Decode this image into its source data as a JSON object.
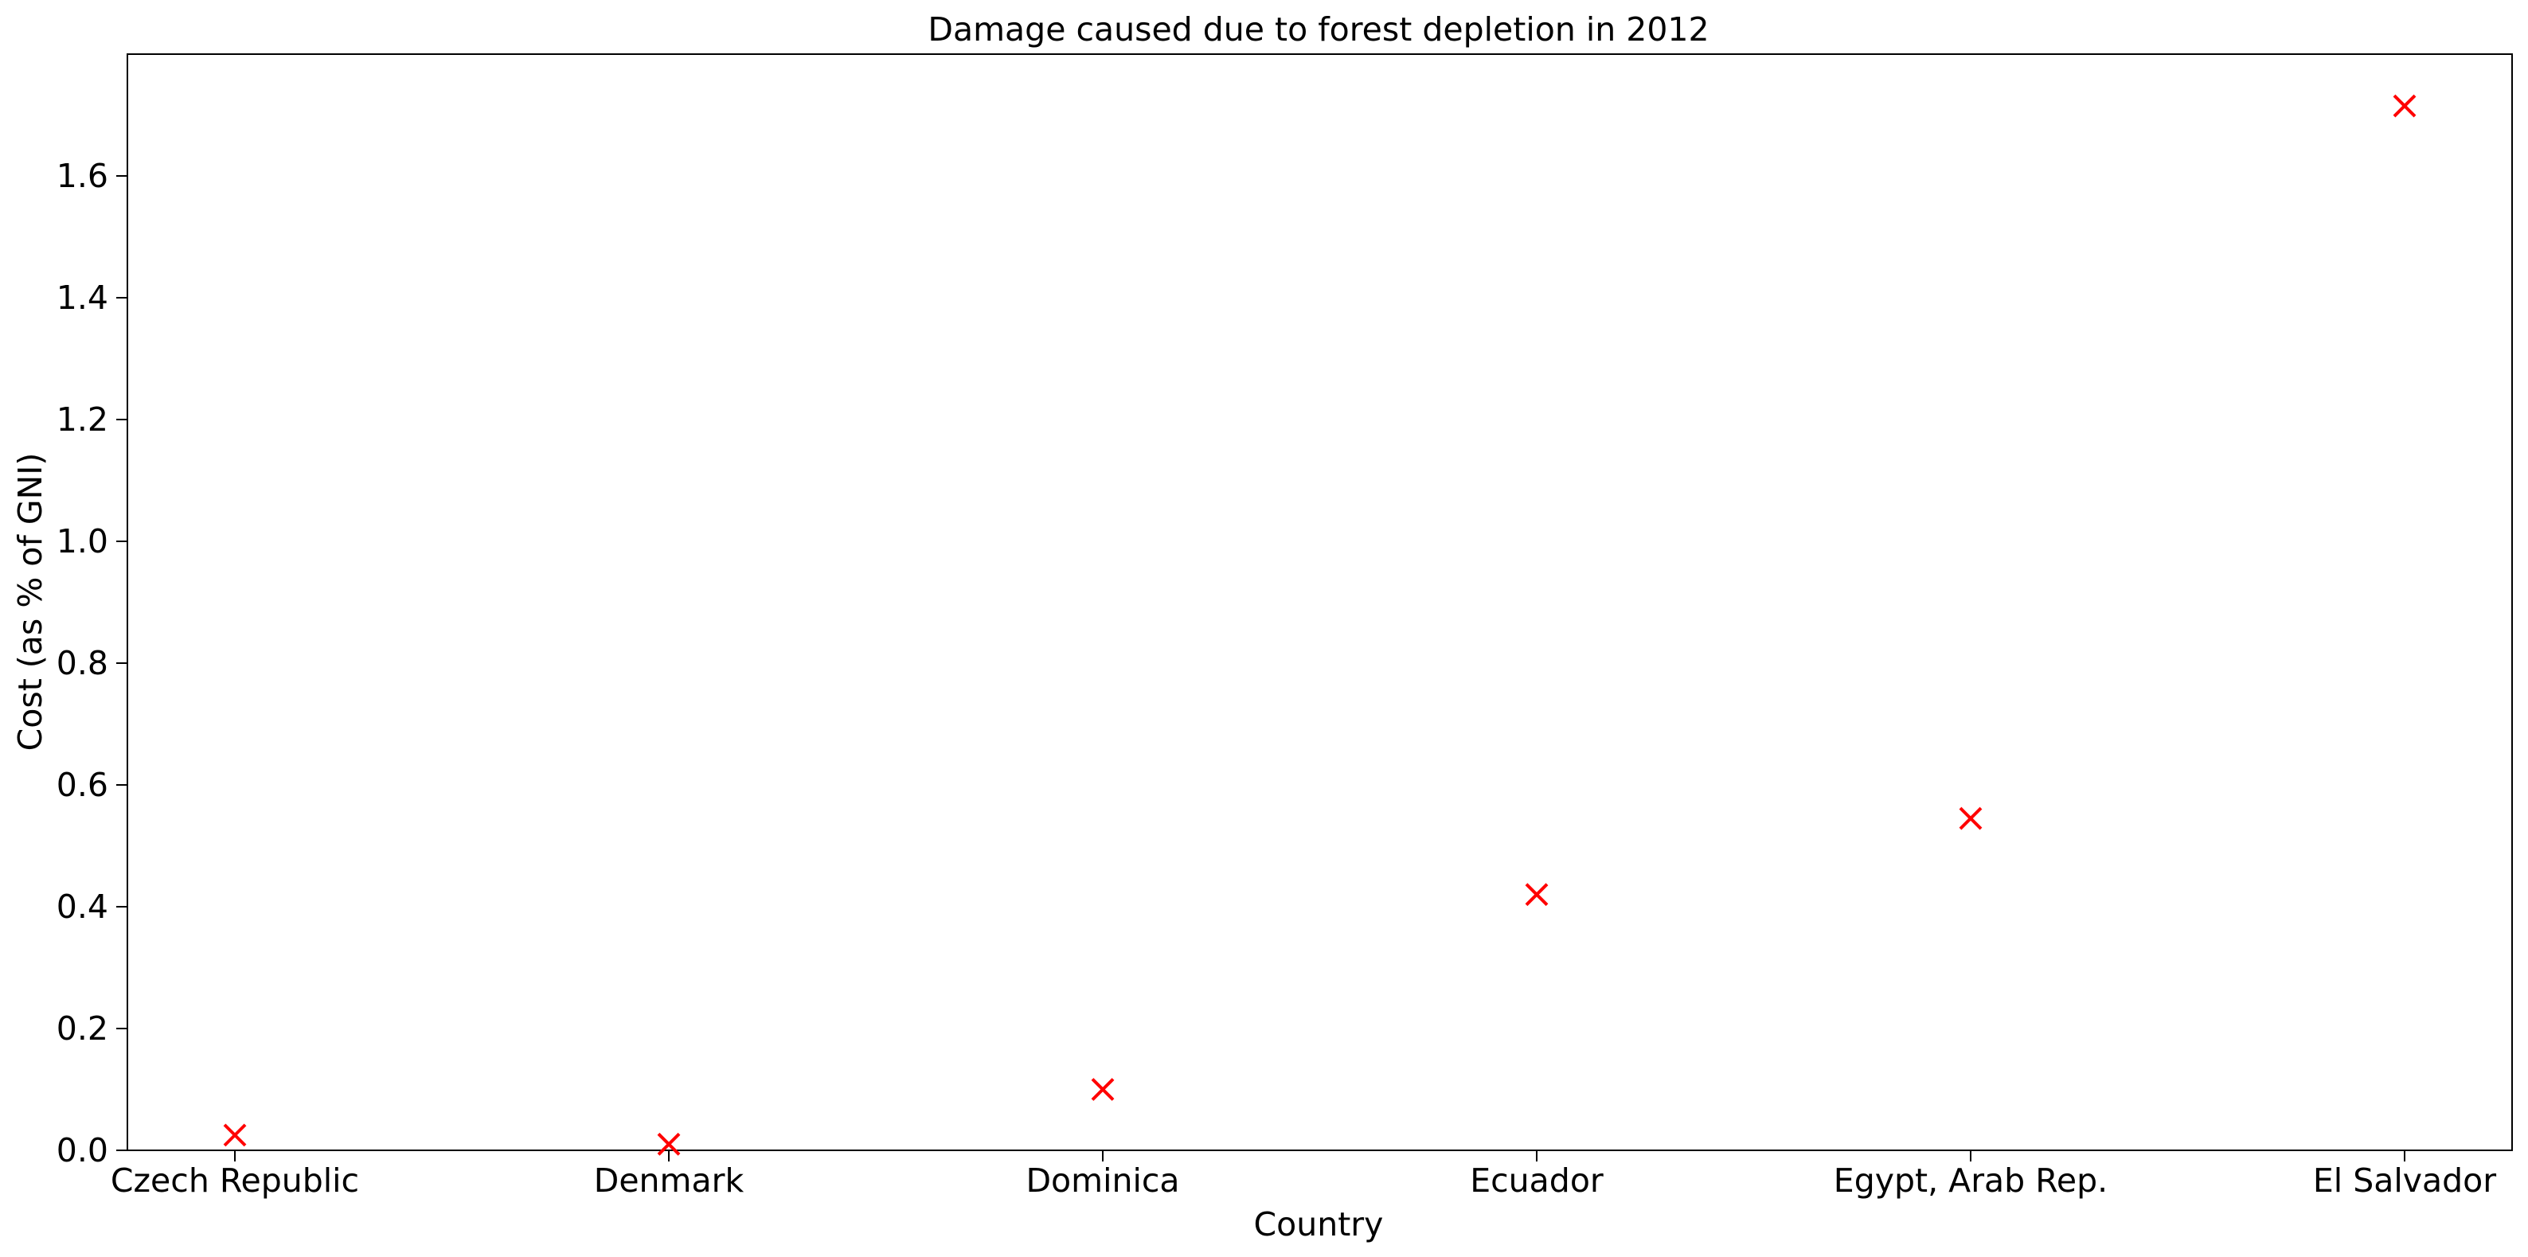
{
  "chart_data": {
    "type": "scatter",
    "title": "Damage caused due to forest depletion in 2012",
    "xlabel": "Country",
    "ylabel": "Cost (as % of GNI)",
    "categories": [
      "Czech Republic",
      "Denmark",
      "Dominica",
      "Ecuador",
      "Egypt, Arab Rep.",
      "El Salvador"
    ],
    "series": [
      {
        "values": [
          0.025,
          0.01,
          0.1,
          0.42,
          0.545,
          1.715
        ],
        "color": "#ff0000",
        "marker": "x"
      }
    ],
    "yticks": [
      "0.0",
      "0.2",
      "0.4",
      "0.6",
      "0.8",
      "1.0",
      "1.2",
      "1.4",
      "1.6"
    ],
    "ylim": [
      0,
      1.8
    ],
    "grid": false,
    "legend": "none"
  }
}
